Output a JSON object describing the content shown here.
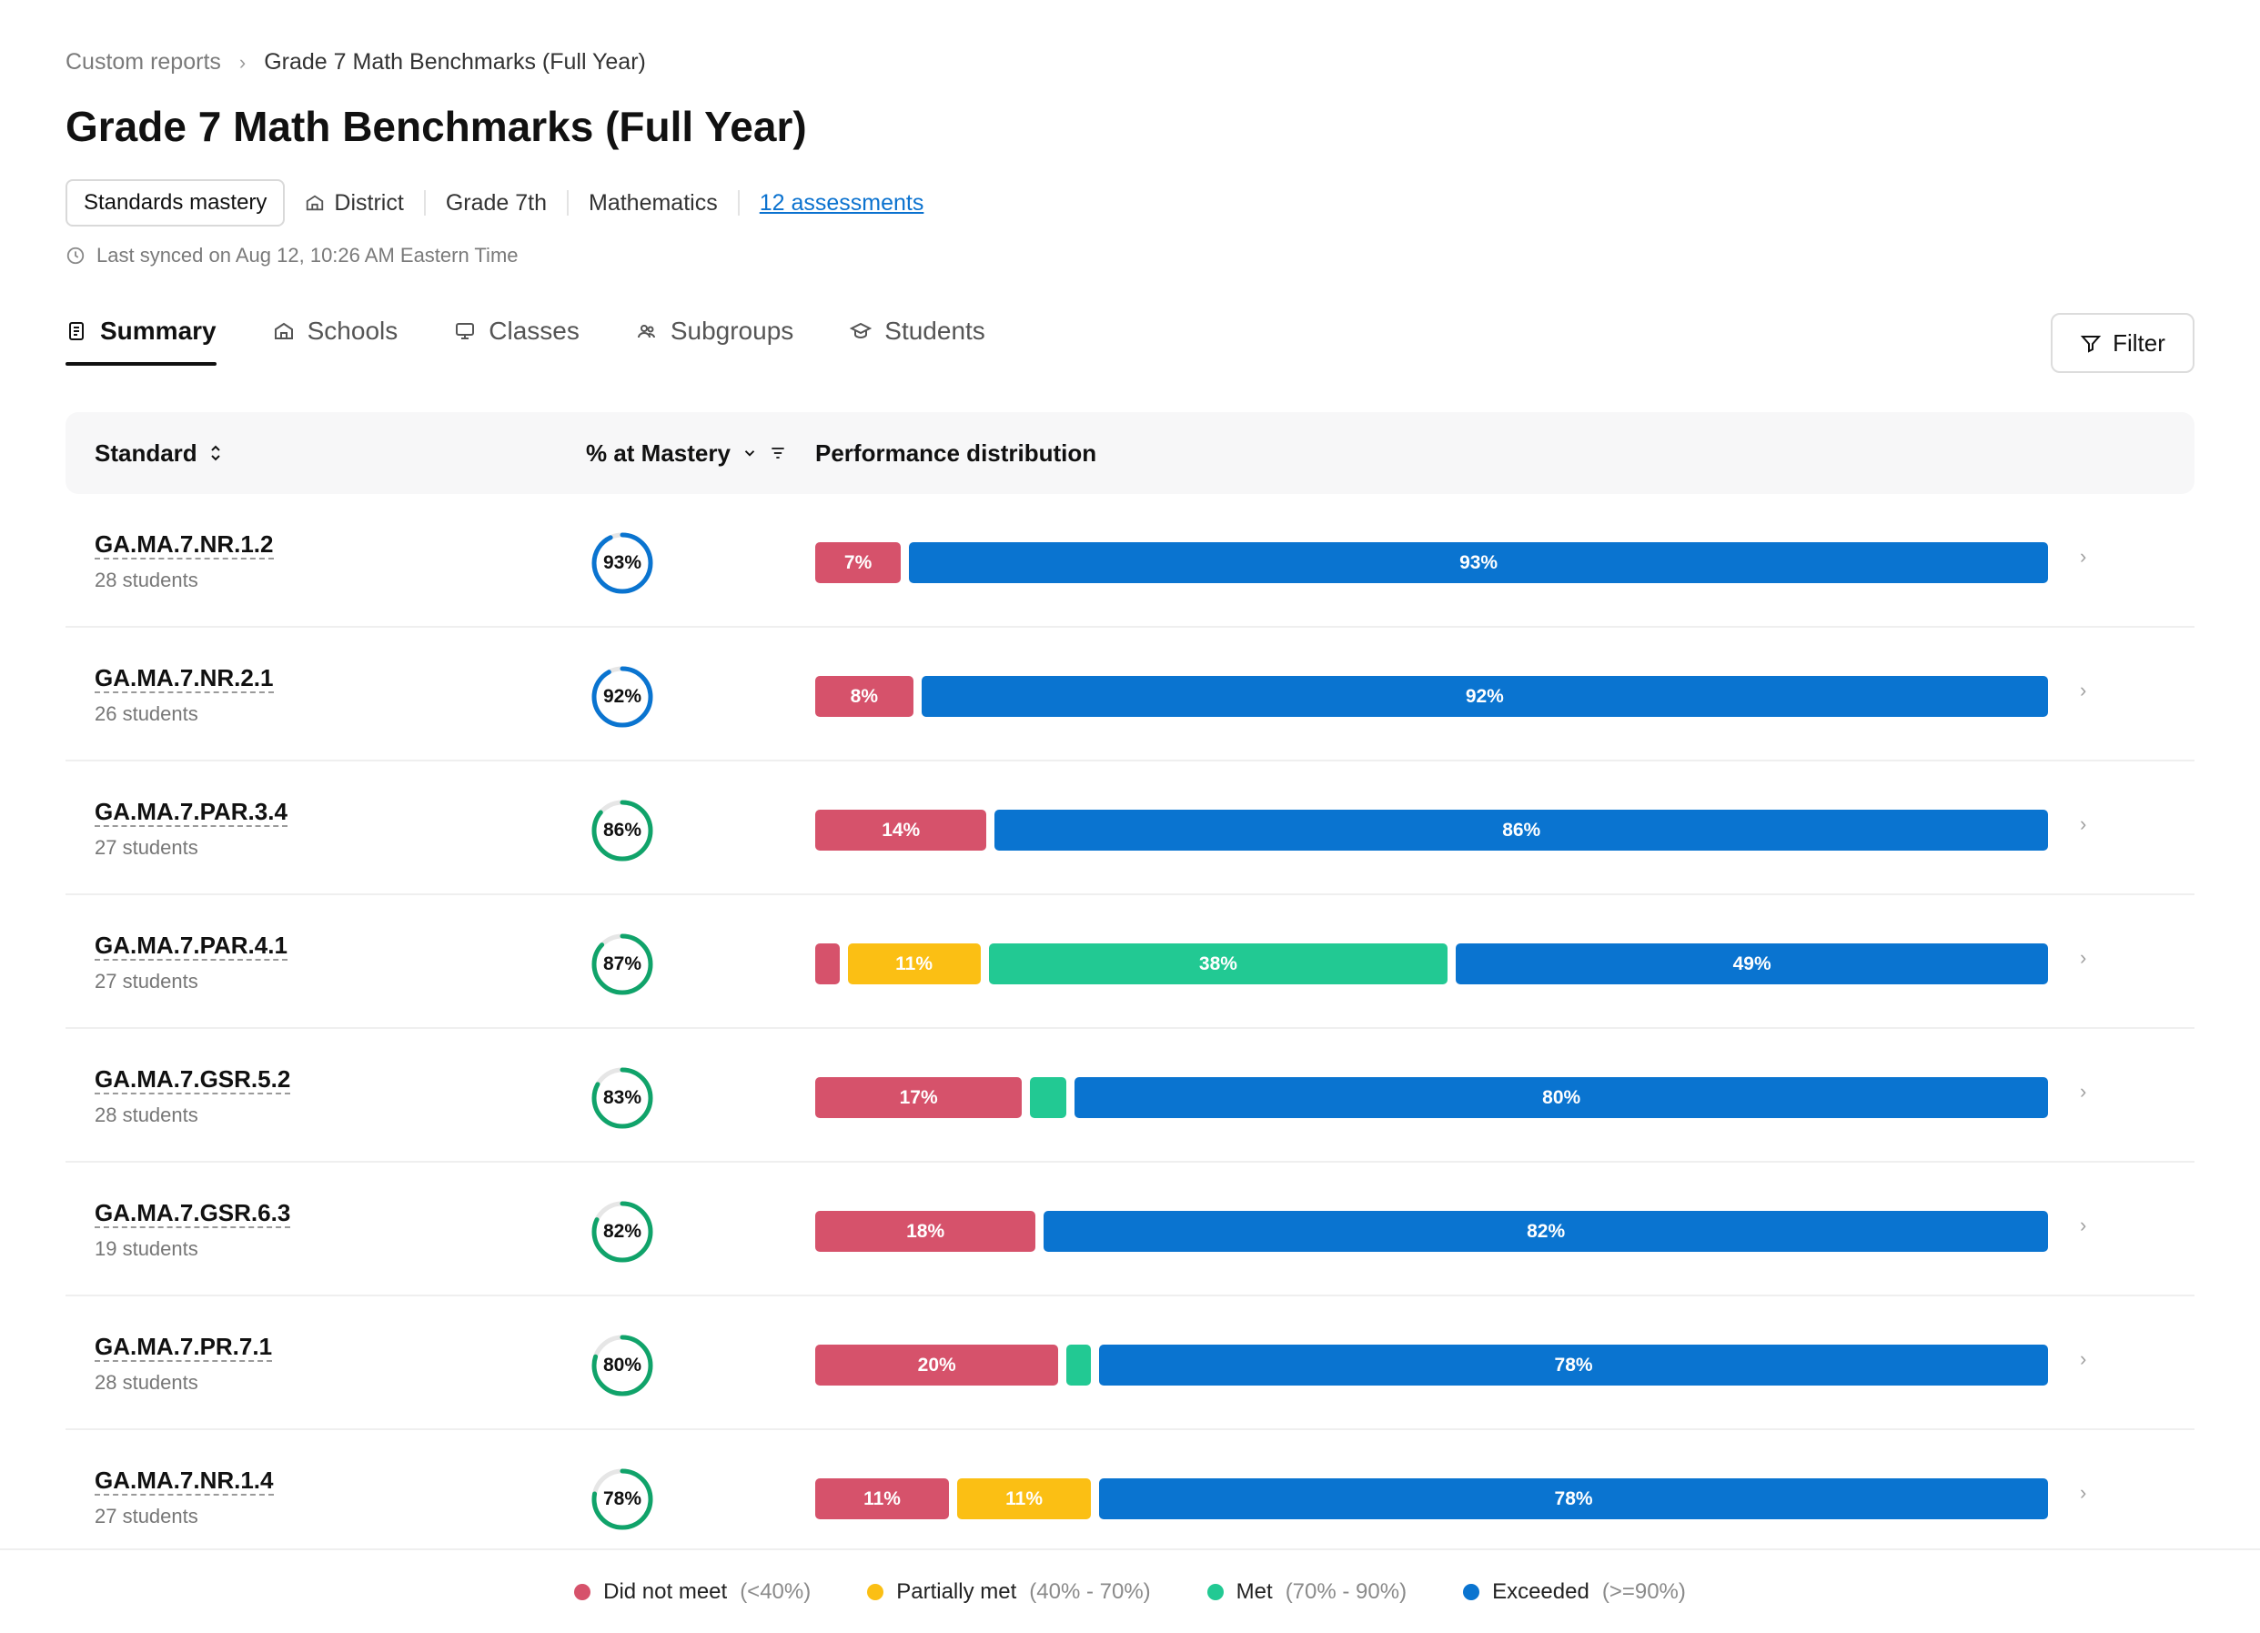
{
  "breadcrumb": {
    "parent": "Custom reports",
    "separator": "›",
    "current": "Grade 7 Math Benchmarks (Full Year)"
  },
  "title": "Grade 7 Math Benchmarks (Full Year)",
  "meta": {
    "report_type": "Standards mastery",
    "district": "District",
    "grade": "Grade 7th",
    "subject": "Mathematics",
    "assessments_link": "12 assessments"
  },
  "synced": "Last synced on Aug 12, 10:26 AM Eastern Time",
  "tabs": [
    {
      "label": "Summary",
      "icon": "document-icon",
      "active": true
    },
    {
      "label": "Schools",
      "icon": "building-icon",
      "active": false
    },
    {
      "label": "Classes",
      "icon": "monitor-icon",
      "active": false
    },
    {
      "label": "Subgroups",
      "icon": "people-icon",
      "active": false
    },
    {
      "label": "Students",
      "icon": "graduation-cap-icon",
      "active": false
    }
  ],
  "filter_label": "Filter",
  "table": {
    "headers": {
      "standard": "Standard",
      "mastery": "% at Mastery",
      "distribution": "Performance distribution"
    }
  },
  "colors": {
    "did_not_meet": "#d6526b",
    "partially_met": "#fbbf14",
    "met": "#22c993",
    "exceeded": "#0a74d0",
    "ring_blue": "#0a74d0",
    "ring_green": "#10a36a",
    "ring_track": "#e6e6e6"
  },
  "rows": [
    {
      "code": "GA.MA.7.NR.1.2",
      "students": "28 students",
      "mastery": 93,
      "mastery_label": "93%",
      "segments": [
        {
          "level": "did_not_meet",
          "value": 7,
          "label": "7%"
        },
        {
          "level": "exceeded",
          "value": 93,
          "label": "93%"
        }
      ]
    },
    {
      "code": "GA.MA.7.NR.2.1",
      "students": "26 students",
      "mastery": 92,
      "mastery_label": "92%",
      "segments": [
        {
          "level": "did_not_meet",
          "value": 8,
          "label": "8%"
        },
        {
          "level": "exceeded",
          "value": 92,
          "label": "92%"
        }
      ]
    },
    {
      "code": "GA.MA.7.PAR.3.4",
      "students": "27 students",
      "mastery": 86,
      "mastery_label": "86%",
      "segments": [
        {
          "level": "did_not_meet",
          "value": 14,
          "label": "14%"
        },
        {
          "level": "exceeded",
          "value": 86,
          "label": "86%"
        }
      ]
    },
    {
      "code": "GA.MA.7.PAR.4.1",
      "students": "27 students",
      "mastery": 87,
      "mastery_label": "87%",
      "segments": [
        {
          "level": "did_not_meet",
          "value": 2,
          "label": ""
        },
        {
          "level": "partially_met",
          "value": 11,
          "label": "11%"
        },
        {
          "level": "met",
          "value": 38,
          "label": "38%"
        },
        {
          "level": "exceeded",
          "value": 49,
          "label": "49%"
        }
      ]
    },
    {
      "code": "GA.MA.7.GSR.5.2",
      "students": "28 students",
      "mastery": 83,
      "mastery_label": "83%",
      "segments": [
        {
          "level": "did_not_meet",
          "value": 17,
          "label": "17%"
        },
        {
          "level": "met",
          "value": 3,
          "label": ""
        },
        {
          "level": "exceeded",
          "value": 80,
          "label": "80%"
        }
      ]
    },
    {
      "code": "GA.MA.7.GSR.6.3",
      "students": "19 students",
      "mastery": 82,
      "mastery_label": "82%",
      "segments": [
        {
          "level": "did_not_meet",
          "value": 18,
          "label": "18%"
        },
        {
          "level": "exceeded",
          "value": 82,
          "label": "82%"
        }
      ]
    },
    {
      "code": "GA.MA.7.PR.7.1",
      "students": "28 students",
      "mastery": 80,
      "mastery_label": "80%",
      "segments": [
        {
          "level": "did_not_meet",
          "value": 20,
          "label": "20%"
        },
        {
          "level": "met",
          "value": 2,
          "label": ""
        },
        {
          "level": "exceeded",
          "value": 78,
          "label": "78%"
        }
      ]
    },
    {
      "code": "GA.MA.7.NR.1.4",
      "students": "27 students",
      "mastery": 78,
      "mastery_label": "78%",
      "segments": [
        {
          "level": "did_not_meet",
          "value": 11,
          "label": "11%"
        },
        {
          "level": "partially_met",
          "value": 11,
          "label": "11%"
        },
        {
          "level": "exceeded",
          "value": 78,
          "label": "78%"
        }
      ]
    }
  ],
  "legend": [
    {
      "level": "did_not_meet",
      "label": "Did not meet",
      "range": "(<40%)"
    },
    {
      "level": "partially_met",
      "label": "Partially met",
      "range": "(40% - 70%)"
    },
    {
      "level": "met",
      "label": "Met",
      "range": "(70% - 90%)"
    },
    {
      "level": "exceeded",
      "label": "Exceeded",
      "range": "(>=90%)"
    }
  ]
}
